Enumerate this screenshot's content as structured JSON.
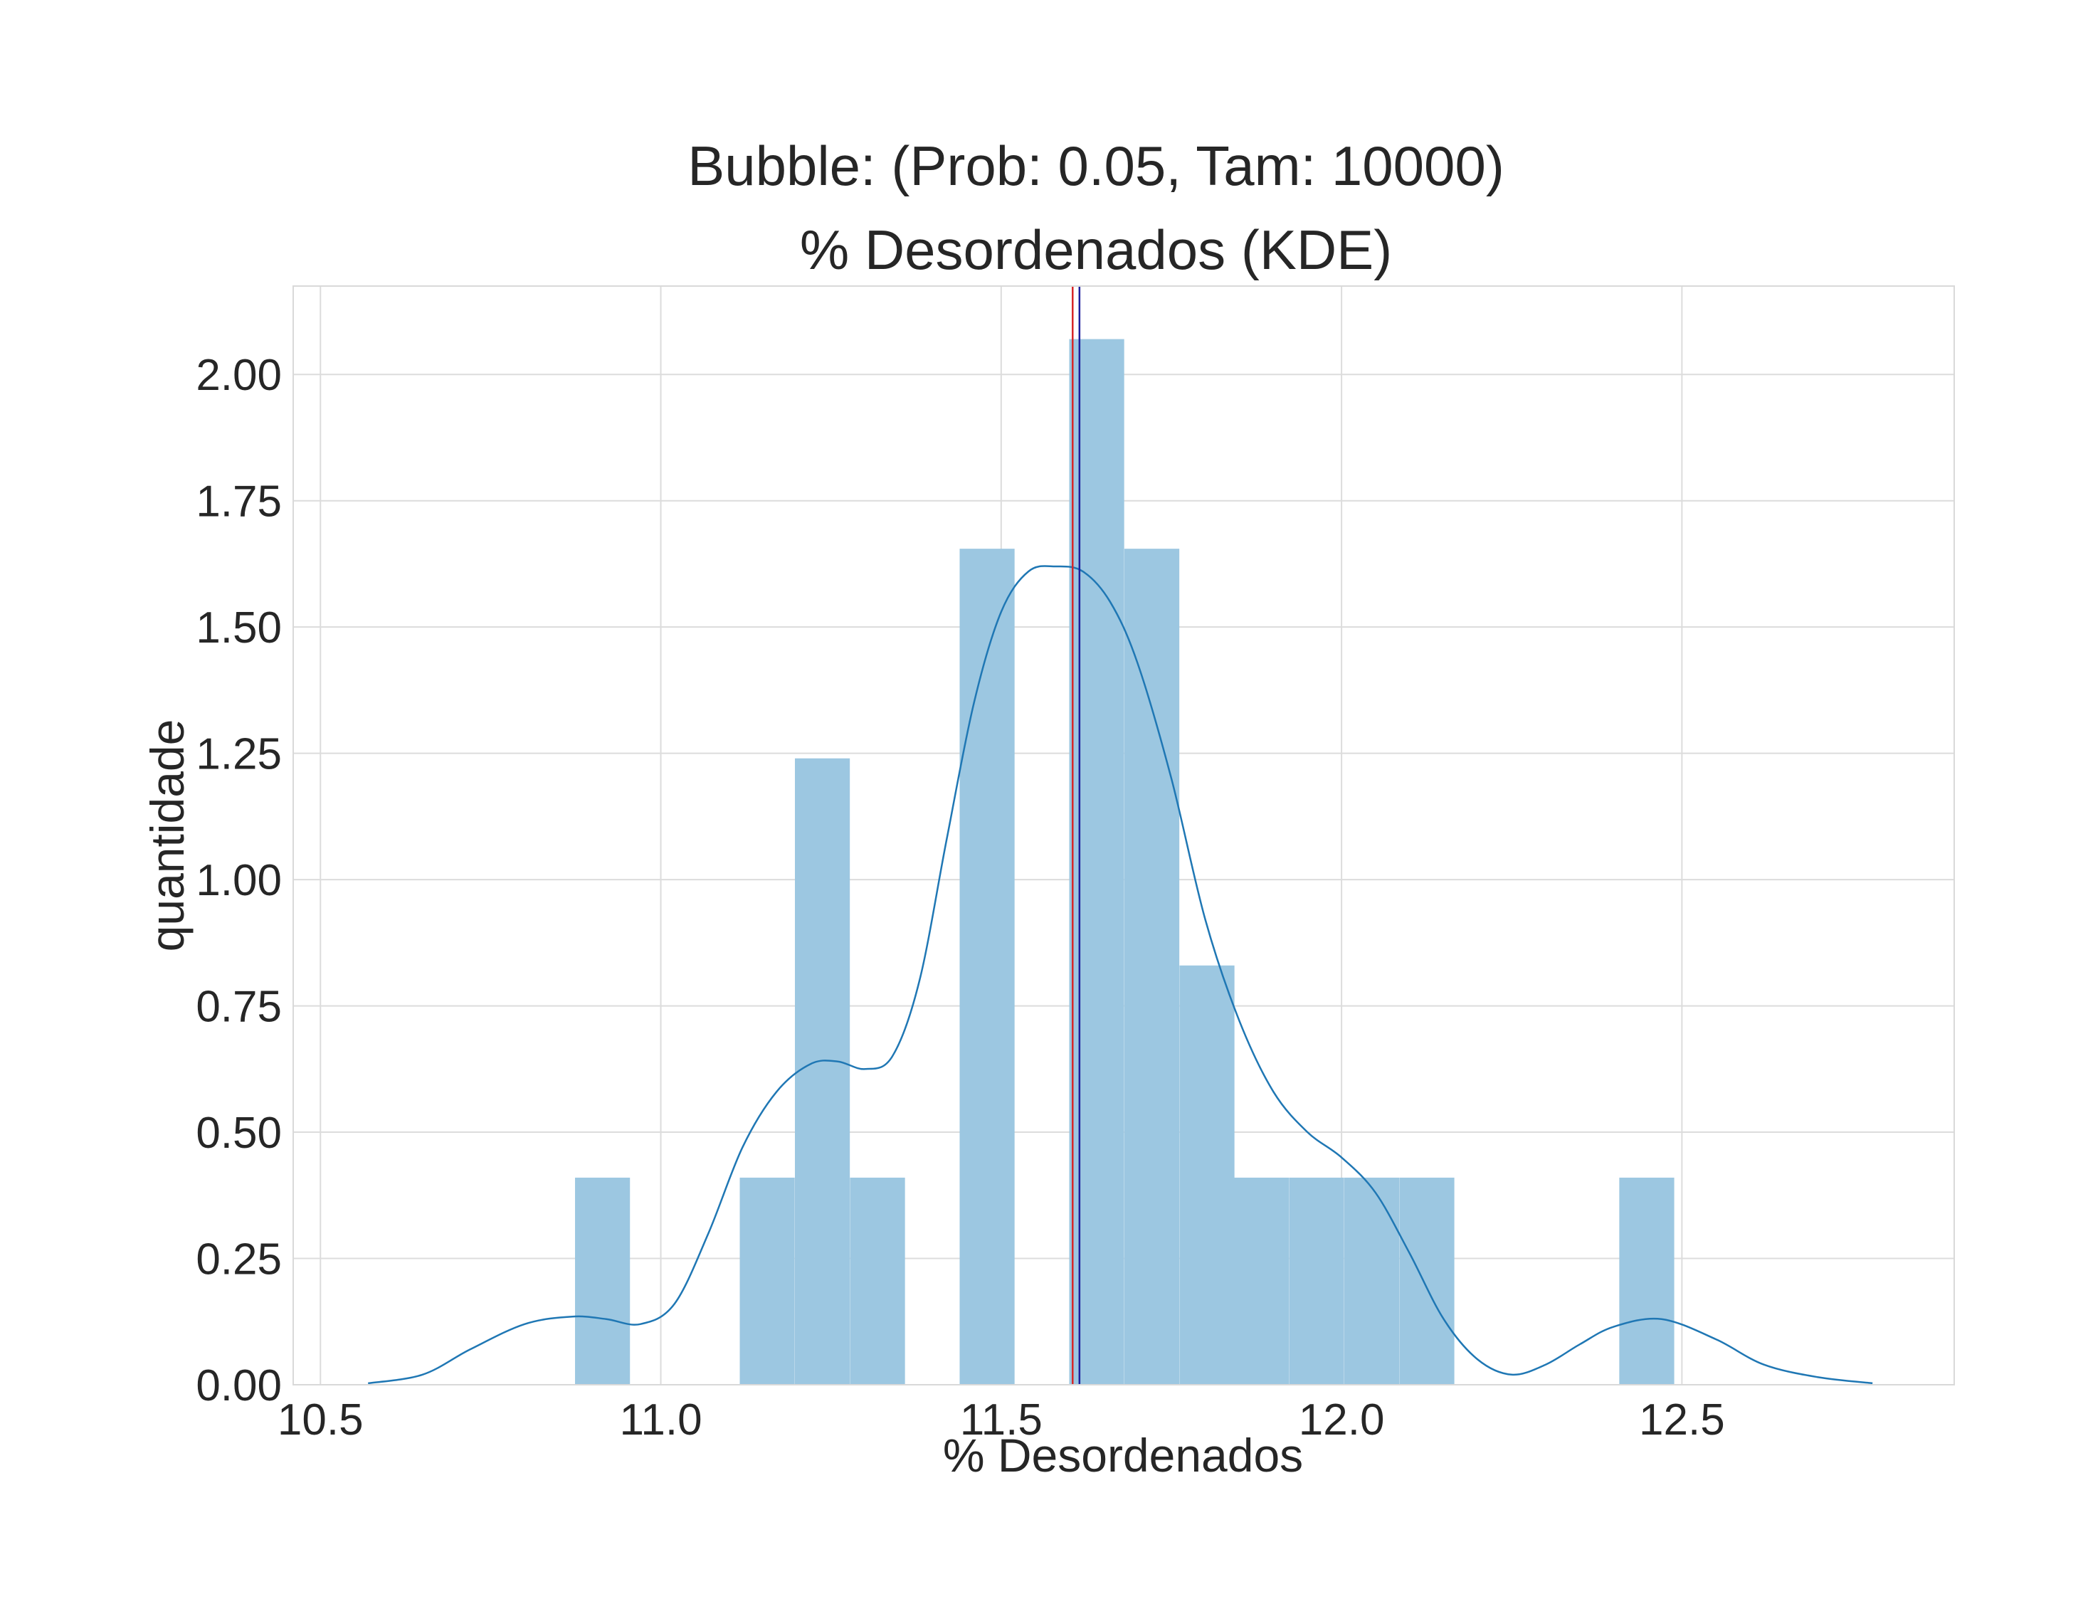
{
  "chart_data": {
    "type": "bar",
    "title_line1": "Bubble: (Prob: 0.05, Tam: 10000)",
    "title_line2": "% Desordenados (KDE)",
    "xlabel": "% Desordenados",
    "ylabel": "quantidade",
    "xlim": [
      10.46,
      12.9
    ],
    "ylim": [
      0,
      2.175
    ],
    "xticks": [
      10.5,
      11.0,
      11.5,
      12.0,
      12.5
    ],
    "xtick_labels": [
      "10.5",
      "11.0",
      "11.5",
      "12.0",
      "12.5"
    ],
    "yticks": [
      0.0,
      0.25,
      0.5,
      0.75,
      1.0,
      1.25,
      1.5,
      1.75,
      2.0
    ],
    "ytick_labels": [
      "0.00",
      "0.25",
      "0.50",
      "0.75",
      "1.00",
      "1.25",
      "1.50",
      "1.75",
      "2.00"
    ],
    "grid": true,
    "bin_width": 0.0807,
    "histogram": {
      "bin_left_edges": [
        10.874,
        11.116,
        11.197,
        11.278,
        11.439,
        11.6,
        11.681,
        11.762,
        11.842,
        11.923,
        12.004,
        12.085,
        12.408
      ],
      "values": [
        0.41,
        0.41,
        1.24,
        0.41,
        1.655,
        2.07,
        1.655,
        0.83,
        0.41,
        0.41,
        0.41,
        0.41,
        0.41
      ]
    },
    "kde": {
      "x": [
        10.57,
        10.65,
        10.72,
        10.8,
        10.87,
        10.92,
        10.97,
        11.02,
        11.07,
        11.12,
        11.17,
        11.22,
        11.26,
        11.3,
        11.34,
        11.38,
        11.42,
        11.46,
        11.5,
        11.54,
        11.58,
        11.62,
        11.66,
        11.7,
        11.75,
        11.8,
        11.85,
        11.9,
        11.95,
        12.0,
        12.05,
        12.1,
        12.15,
        12.2,
        12.25,
        12.3,
        12.35,
        12.4,
        12.47,
        12.55,
        12.62,
        12.7,
        12.78
      ],
      "y": [
        0.003,
        0.02,
        0.07,
        0.12,
        0.135,
        0.13,
        0.12,
        0.16,
        0.3,
        0.47,
        0.58,
        0.635,
        0.64,
        0.625,
        0.65,
        0.8,
        1.08,
        1.35,
        1.53,
        1.61,
        1.62,
        1.61,
        1.55,
        1.43,
        1.2,
        0.92,
        0.72,
        0.58,
        0.5,
        0.45,
        0.38,
        0.26,
        0.13,
        0.05,
        0.02,
        0.04,
        0.08,
        0.115,
        0.13,
        0.09,
        0.04,
        0.015,
        0.003
      ]
    },
    "vlines": [
      {
        "name": "red-line",
        "x": 11.605,
        "color": "#d62728"
      },
      {
        "name": "blue-line",
        "x": 11.615,
        "color": "#1f1f9e"
      }
    ],
    "colors": {
      "bar": "#9cc7e1",
      "kde": "#1f77b4",
      "grid": "#dcdcdc",
      "spine": "#d9d9d9"
    }
  }
}
